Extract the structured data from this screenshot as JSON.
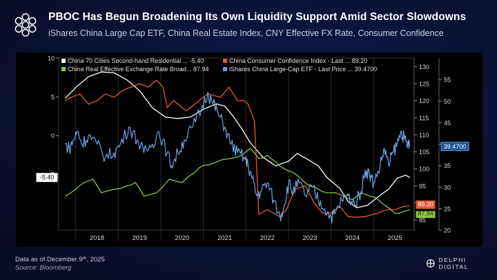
{
  "header": {
    "title": "PBOC Has Begun Broadening Its Own Liquidity Support Amid Sector Slowdowns",
    "subtitle": "iShares China Large Cap ETF, China Real Estate Index, CNY Effective FX Rate, Consumer Confidence"
  },
  "footer": {
    "data_as_of": "Data as of December 9ᵗʰ, 2025",
    "source": "Source: Bloomberg",
    "brand": "DELPHI DIGITAL"
  },
  "colors": {
    "white_series": "#f2f2f2",
    "orange_series": "#e8572f",
    "green_series": "#8cc63f",
    "blue_series": "#6fa3e6",
    "background": "#0a1133"
  },
  "chart_data": {
    "type": "line",
    "x_range": [
      2017.6,
      2025.95
    ],
    "x_ticks": [
      "2018",
      "2019",
      "2020",
      "2021",
      "2022",
      "2023",
      "2024",
      "2025"
    ],
    "axes": {
      "left": {
        "range": [
          -12.2,
          10
        ],
        "ticks": [
          "10",
          "5",
          "0",
          "-5"
        ],
        "tick_values": [
          10,
          5,
          0,
          -5
        ]
      },
      "right_inner": {
        "range": [
          82,
          132.5
        ],
        "ticks": [
          "130",
          "125",
          "120",
          "115",
          "110",
          "105",
          "100",
          "95",
          "90",
          "85"
        ]
      },
      "right_outer": {
        "range": [
          20,
          60
        ],
        "ticks": [
          "55",
          "50",
          "45",
          "40",
          "35",
          "30",
          "25",
          "20"
        ]
      }
    },
    "legend": [
      {
        "label": "China 70 Cities Second-hand Residential ...",
        "value": "-5.40",
        "color": "#f2f2f2"
      },
      {
        "label": "China Consumer Confidence Index - Last ...",
        "value": "89.20",
        "color": "#e8572f"
      },
      {
        "label": "China Real Effective Exchange Rate Broad...",
        "value": "87.94",
        "color": "#8cc63f"
      },
      {
        "label": "iShares China Large-Cap ETF - Last Price ...",
        "value": "39.4700",
        "color": "#6fa3e6"
      }
    ],
    "end_labels": {
      "white": "-5.40",
      "blue": "39.4700",
      "orange": "89.20",
      "green": "87.94"
    },
    "series": [
      {
        "name": "China 70 Cities Second-hand Residential (YoY %)",
        "axis": "left",
        "color": "#f2f2f2",
        "points": [
          [
            2017.75,
            4.8
          ],
          [
            2018.0,
            6.2
          ],
          [
            2018.3,
            7.6
          ],
          [
            2018.6,
            8.2
          ],
          [
            2018.9,
            8.1
          ],
          [
            2019.2,
            7.2
          ],
          [
            2019.5,
            5.8
          ],
          [
            2019.8,
            3.6
          ],
          [
            2020.1,
            2.4
          ],
          [
            2020.4,
            2.2
          ],
          [
            2020.7,
            2.4
          ],
          [
            2021.0,
            3.4
          ],
          [
            2021.3,
            4.1
          ],
          [
            2021.5,
            3.8
          ],
          [
            2021.7,
            2.5
          ],
          [
            2021.9,
            0.9
          ],
          [
            2022.1,
            -0.9
          ],
          [
            2022.4,
            -2.8
          ],
          [
            2022.7,
            -3.9
          ],
          [
            2023.0,
            -3.3
          ],
          [
            2023.2,
            -2.3
          ],
          [
            2023.4,
            -2.9
          ],
          [
            2023.7,
            -3.9
          ],
          [
            2023.9,
            -5.4
          ],
          [
            2024.2,
            -6.8
          ],
          [
            2024.4,
            -8.5
          ],
          [
            2024.6,
            -9.3
          ],
          [
            2024.85,
            -9.0
          ],
          [
            2025.1,
            -7.9
          ],
          [
            2025.35,
            -6.9
          ],
          [
            2025.55,
            -5.5
          ],
          [
            2025.75,
            -5.1
          ],
          [
            2025.85,
            -5.4
          ]
        ]
      },
      {
        "name": "China Consumer Confidence Index",
        "axis": "right_inner",
        "color": "#e8572f",
        "points": [
          [
            2017.75,
            120
          ],
          [
            2017.9,
            121
          ],
          [
            2018.1,
            122
          ],
          [
            2018.3,
            119
          ],
          [
            2018.5,
            120
          ],
          [
            2018.7,
            122
          ],
          [
            2018.9,
            121
          ],
          [
            2019.1,
            123
          ],
          [
            2019.3,
            124
          ],
          [
            2019.5,
            125
          ],
          [
            2019.7,
            124
          ],
          [
            2019.9,
            126
          ],
          [
            2020.05,
            124
          ],
          [
            2020.15,
            118
          ],
          [
            2020.3,
            120
          ],
          [
            2020.6,
            117
          ],
          [
            2020.9,
            120
          ],
          [
            2021.1,
            122
          ],
          [
            2021.4,
            121
          ],
          [
            2021.6,
            124
          ],
          [
            2021.8,
            120
          ],
          [
            2021.95,
            120
          ],
          [
            2022.05,
            119
          ],
          [
            2022.2,
            114
          ],
          [
            2022.3,
            86.7
          ],
          [
            2022.5,
            88
          ],
          [
            2022.8,
            86
          ],
          [
            2022.95,
            88
          ],
          [
            2023.15,
            94
          ],
          [
            2023.4,
            95
          ],
          [
            2023.6,
            90
          ],
          [
            2023.8,
            87
          ],
          [
            2024.0,
            87
          ],
          [
            2024.2,
            89
          ],
          [
            2024.4,
            86
          ],
          [
            2024.6,
            85.8
          ],
          [
            2024.8,
            86
          ],
          [
            2024.95,
            86.5
          ],
          [
            2025.1,
            87
          ],
          [
            2025.3,
            88
          ],
          [
            2025.5,
            88
          ],
          [
            2025.7,
            89
          ],
          [
            2025.85,
            89.2
          ]
        ]
      },
      {
        "name": "China Real Effective Exchange Rate Broad",
        "axis": "right_inner",
        "color": "#8cc63f",
        "points": [
          [
            2017.75,
            92
          ],
          [
            2018.0,
            94
          ],
          [
            2018.2,
            96
          ],
          [
            2018.4,
            97
          ],
          [
            2018.6,
            93
          ],
          [
            2018.9,
            94
          ],
          [
            2019.2,
            95
          ],
          [
            2019.4,
            96
          ],
          [
            2019.6,
            92
          ],
          [
            2019.9,
            93
          ],
          [
            2020.2,
            97
          ],
          [
            2020.5,
            96
          ],
          [
            2020.8,
            99
          ],
          [
            2021.0,
            101
          ],
          [
            2021.3,
            102
          ],
          [
            2021.6,
            103
          ],
          [
            2021.9,
            104
          ],
          [
            2022.1,
            106
          ],
          [
            2022.3,
            103
          ],
          [
            2022.5,
            104
          ],
          [
            2022.7,
            102
          ],
          [
            2022.9,
            100
          ],
          [
            2023.1,
            99
          ],
          [
            2023.3,
            97
          ],
          [
            2023.5,
            95
          ],
          [
            2023.7,
            94
          ],
          [
            2023.9,
            93
          ],
          [
            2024.1,
            93
          ],
          [
            2024.3,
            92
          ],
          [
            2024.5,
            91
          ],
          [
            2024.7,
            93
          ],
          [
            2024.9,
            92
          ],
          [
            2025.1,
            91
          ],
          [
            2025.3,
            89
          ],
          [
            2025.5,
            87
          ],
          [
            2025.7,
            87.5
          ],
          [
            2025.85,
            87.94
          ]
        ]
      },
      {
        "name": "iShares China Large-Cap ETF - Last Price",
        "axis": "right_outer",
        "color": "#6fa3e6",
        "points": [
          [
            2017.75,
            40
          ],
          [
            2017.85,
            39
          ],
          [
            2017.95,
            41
          ],
          [
            2018.05,
            43
          ],
          [
            2018.15,
            40
          ],
          [
            2018.3,
            42
          ],
          [
            2018.5,
            40
          ],
          [
            2018.7,
            37
          ],
          [
            2018.9,
            38
          ],
          [
            2019.05,
            40
          ],
          [
            2019.25,
            44
          ],
          [
            2019.45,
            41
          ],
          [
            2019.6,
            38
          ],
          [
            2019.8,
            40
          ],
          [
            2019.95,
            43
          ],
          [
            2020.15,
            38
          ],
          [
            2020.25,
            35
          ],
          [
            2020.4,
            38
          ],
          [
            2020.55,
            41
          ],
          [
            2020.75,
            44
          ],
          [
            2020.95,
            48
          ],
          [
            2021.1,
            52
          ],
          [
            2021.2,
            50
          ],
          [
            2021.35,
            47
          ],
          [
            2021.5,
            44
          ],
          [
            2021.65,
            40
          ],
          [
            2021.8,
            38
          ],
          [
            2021.95,
            37
          ],
          [
            2022.05,
            35
          ],
          [
            2022.15,
            32
          ],
          [
            2022.25,
            28
          ],
          [
            2022.35,
            29
          ],
          [
            2022.5,
            31
          ],
          [
            2022.65,
            27
          ],
          [
            2022.8,
            23
          ],
          [
            2022.9,
            26
          ],
          [
            2023.0,
            31
          ],
          [
            2023.1,
            29
          ],
          [
            2023.25,
            31
          ],
          [
            2023.4,
            28
          ],
          [
            2023.55,
            30
          ],
          [
            2023.7,
            27
          ],
          [
            2023.85,
            25
          ],
          [
            2024.0,
            23
          ],
          [
            2024.1,
            24
          ],
          [
            2024.25,
            27
          ],
          [
            2024.4,
            28
          ],
          [
            2024.55,
            26
          ],
          [
            2024.7,
            29
          ],
          [
            2024.8,
            34
          ],
          [
            2024.9,
            33
          ],
          [
            2025.0,
            31
          ],
          [
            2025.15,
            35
          ],
          [
            2025.25,
            39
          ],
          [
            2025.35,
            35
          ],
          [
            2025.45,
            38
          ],
          [
            2025.55,
            40
          ],
          [
            2025.65,
            43
          ],
          [
            2025.72,
            41
          ],
          [
            2025.8,
            40
          ],
          [
            2025.85,
            39.47
          ]
        ]
      }
    ]
  }
}
